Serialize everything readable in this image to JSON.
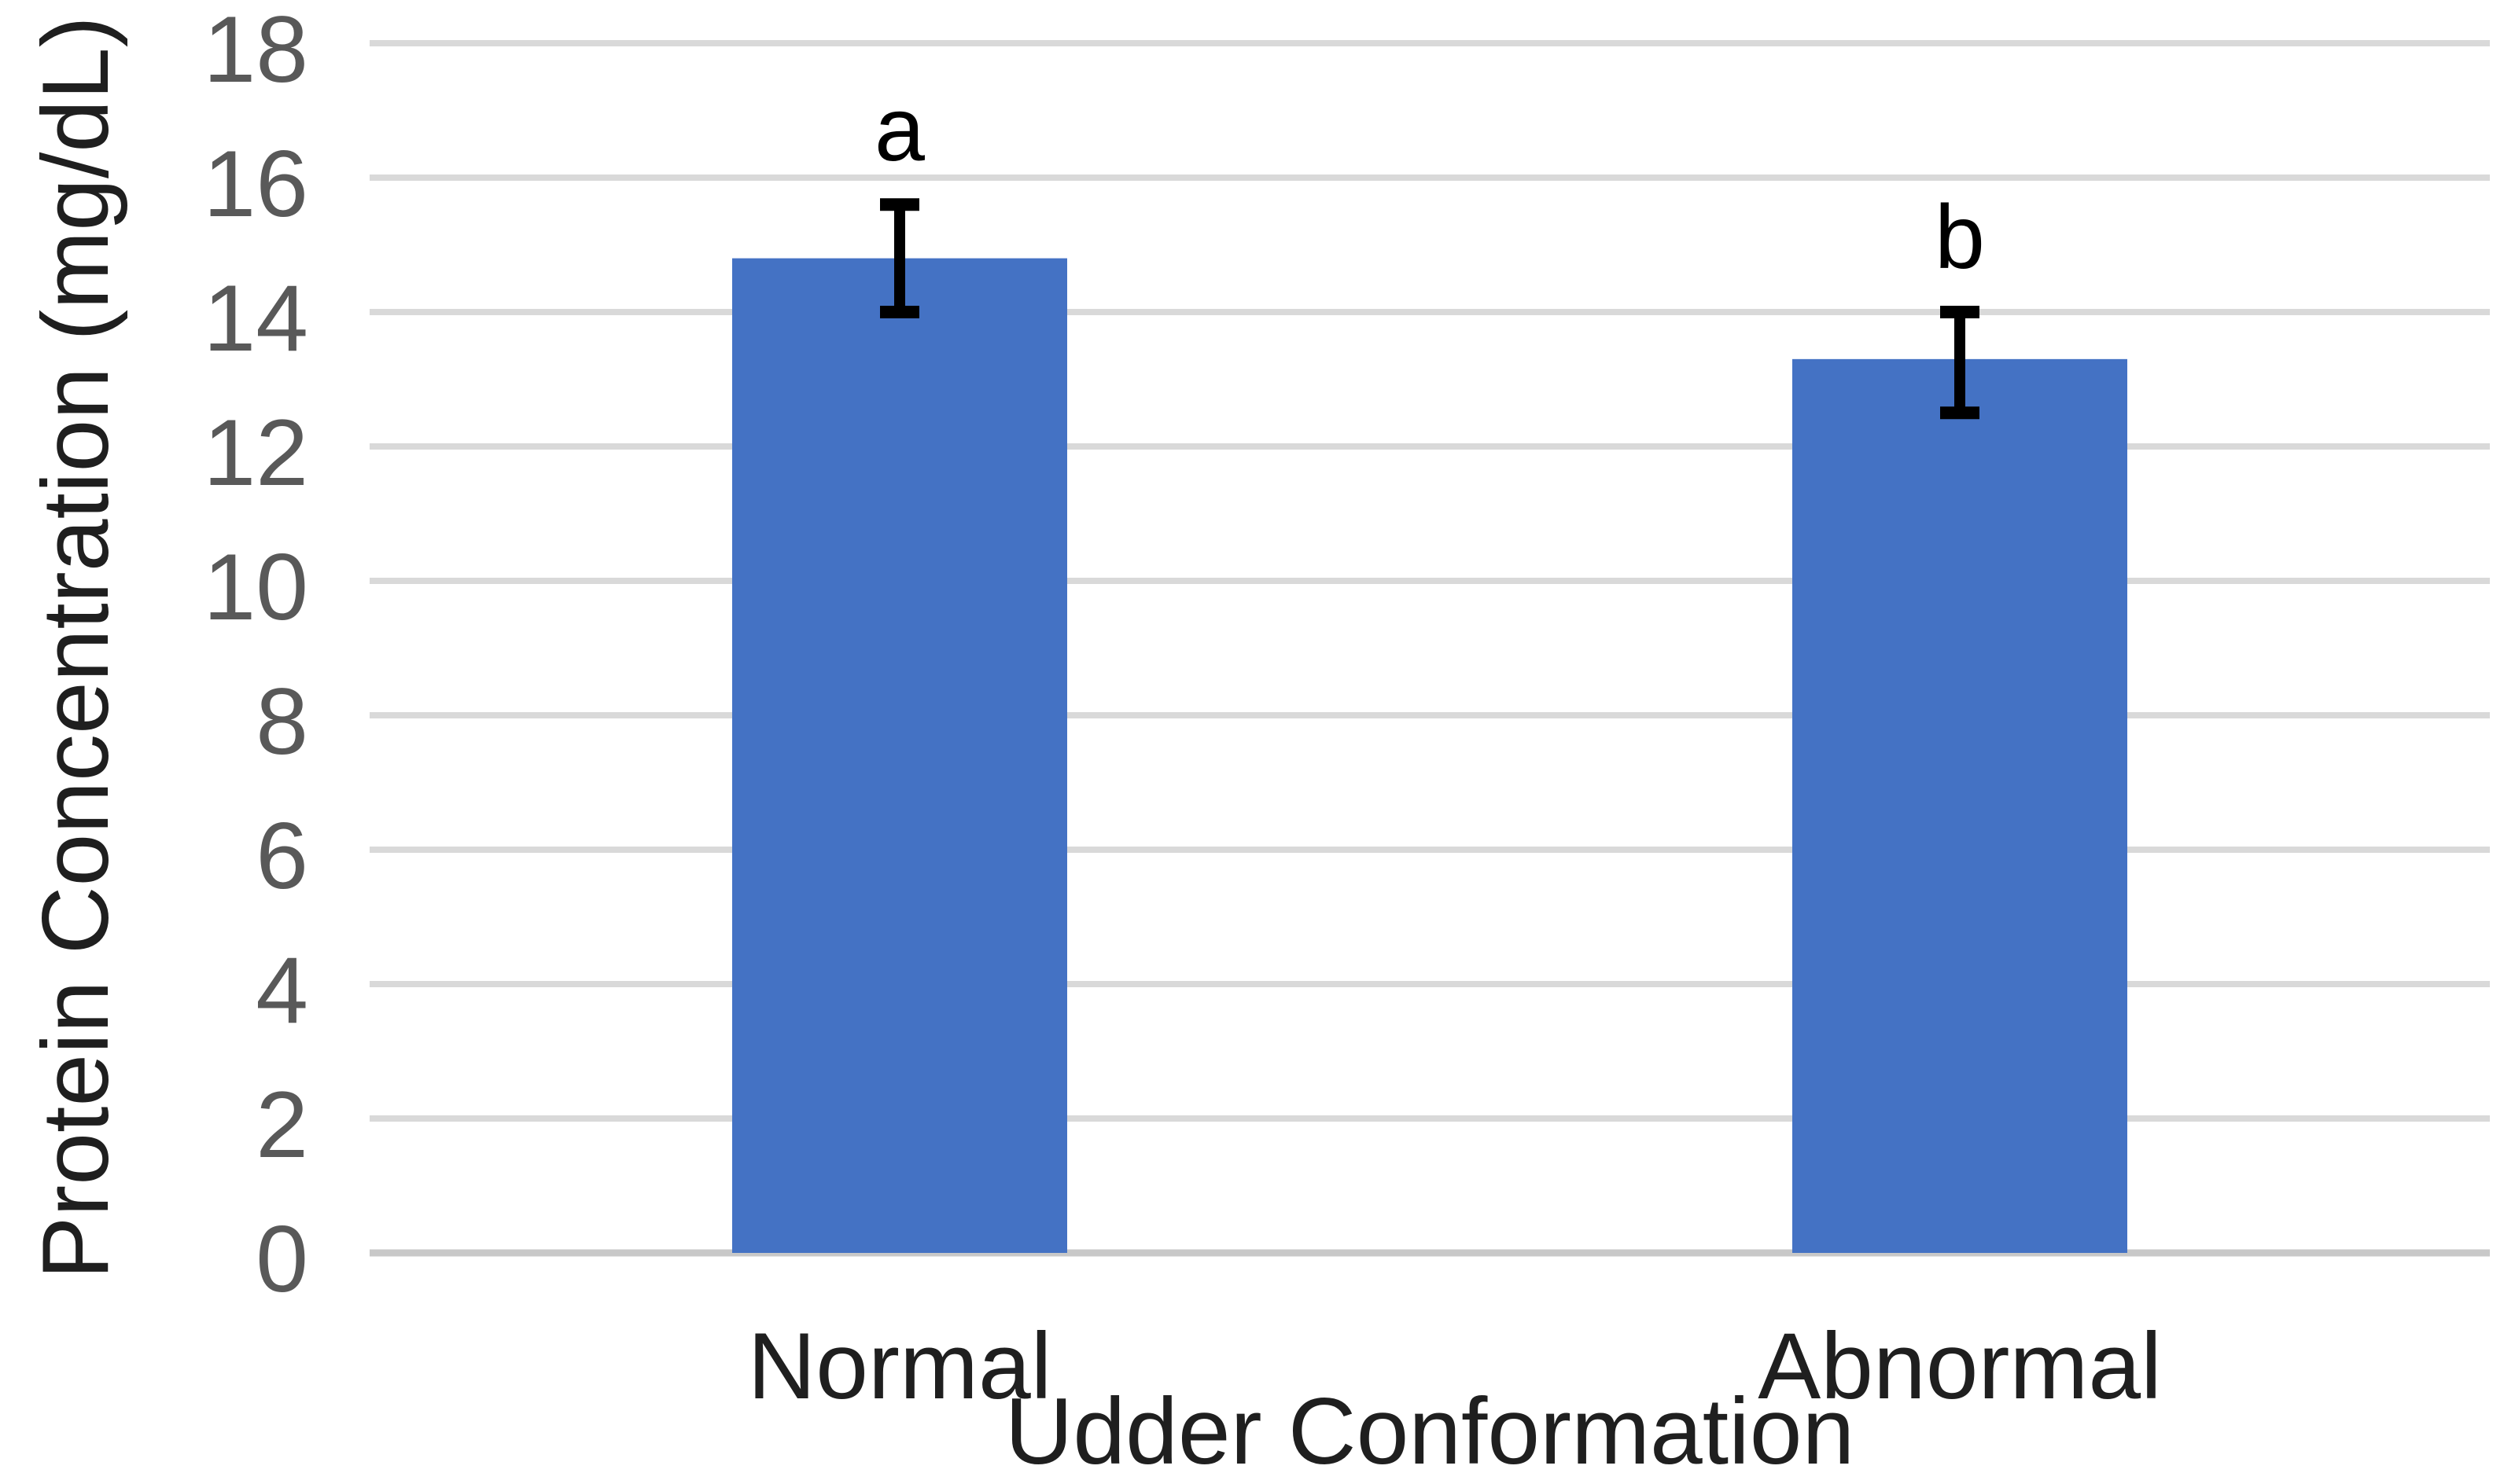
{
  "chart_data": {
    "type": "bar",
    "title": "",
    "categories": [
      "Normal",
      "Abnormal"
    ],
    "values": [
      14.8,
      13.3
    ],
    "error_bars": [
      {
        "low": 14.0,
        "high": 15.6
      },
      {
        "low": 12.5,
        "high": 14.0
      }
    ],
    "sig_letters": [
      "a",
      "b"
    ],
    "xlabel": "Udder Conformation",
    "ylabel": "Protein Concentration (mg/dL)",
    "ylim": [
      0,
      18
    ],
    "yticks": [
      0,
      2,
      4,
      6,
      8,
      10,
      12,
      14,
      16,
      18
    ],
    "grid": "horizontal",
    "legend": "none",
    "colors": {
      "bar": "#4472C4",
      "gridline": "#D9D9D9",
      "axis_line": "#C8C8C8",
      "tick_text": "#595959",
      "label_text": "#1F1F1F",
      "error_bar": "#000000",
      "sig_letter": "#000000",
      "background": "#FFFFFF"
    }
  }
}
